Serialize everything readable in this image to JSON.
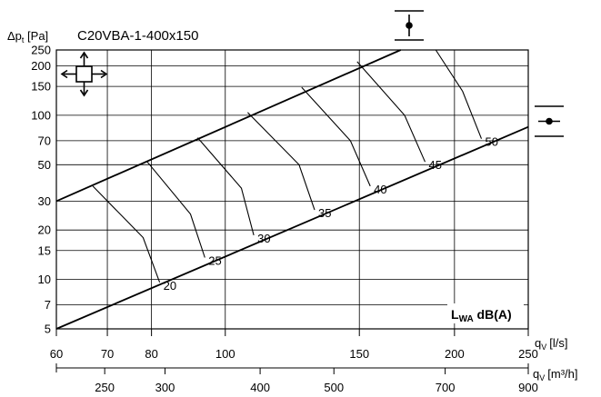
{
  "chart_data": {
    "type": "line",
    "title": "C20VBA-1-400x150",
    "ylabel": "Δpt [Pa]",
    "ylabel_main": "Δp",
    "ylabel_sub": "t",
    "ylabel_unit": " [Pa]",
    "y_scale": "log",
    "ylim": [
      5,
      250
    ],
    "y_ticks": [
      5,
      7,
      10,
      15,
      20,
      30,
      50,
      70,
      100,
      150,
      200,
      250
    ],
    "x_scale": "log",
    "xlim": [
      60,
      250
    ],
    "x_unit_ls": "[l/s]",
    "x_unit_m3h": "[m³/h]",
    "qv_label": "q",
    "qv_sub": "V",
    "x_ticks_ls": [
      60,
      70,
      80,
      100,
      150,
      200,
      250
    ],
    "x_ticks_m3h": [
      250,
      300,
      400,
      500,
      700,
      900
    ],
    "grid": true,
    "sound_label_main": "L",
    "sound_label_sub": "WA",
    "sound_label_unit": " dB(A)",
    "series": [
      {
        "kind": "max_line",
        "points": [
          [
            60,
            30
          ],
          [
            170,
            250
          ]
        ]
      },
      {
        "kind": "min_line",
        "points": [
          [
            60,
            5
          ],
          [
            250,
            85
          ]
        ]
      },
      {
        "kind": "sound",
        "name": "20",
        "points": [
          [
            67,
            37
          ],
          [
            78,
            18
          ],
          [
            82,
            9.6
          ]
        ]
      },
      {
        "kind": "sound",
        "name": "25",
        "points": [
          [
            79,
            52
          ],
          [
            90,
            25
          ],
          [
            94,
            13.6
          ]
        ]
      },
      {
        "kind": "sound",
        "name": "30",
        "points": [
          [
            92,
            73
          ],
          [
            105,
            36
          ],
          [
            109,
            18.6
          ]
        ]
      },
      {
        "kind": "sound",
        "name": "35",
        "points": [
          [
            107,
            104
          ],
          [
            125,
            50
          ],
          [
            131,
            26.5
          ]
        ]
      },
      {
        "kind": "sound",
        "name": "40",
        "points": [
          [
            126,
            148
          ],
          [
            146,
            70
          ],
          [
            155,
            37
          ]
        ]
      },
      {
        "kind": "sound",
        "name": "45",
        "points": [
          [
            149,
            212
          ],
          [
            172,
            100
          ],
          [
            183,
            52
          ]
        ]
      },
      {
        "kind": "sound",
        "name": "50",
        "points": [
          [
            189,
            250
          ],
          [
            205,
            140
          ],
          [
            217,
            72
          ]
        ]
      }
    ]
  }
}
